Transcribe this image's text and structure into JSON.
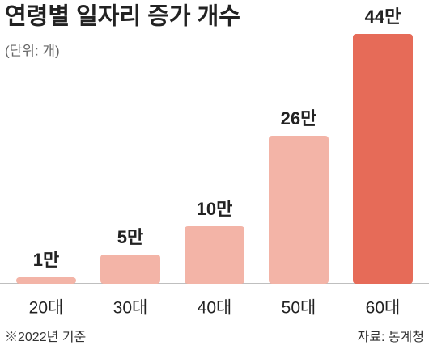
{
  "chart_data": {
    "type": "bar",
    "title": "연령별 일자리 증가 개수",
    "subtitle": "(단위: 개)",
    "categories": [
      "20대",
      "30대",
      "40대",
      "50대",
      "60대"
    ],
    "values": [
      1,
      5,
      10,
      26,
      44
    ],
    "value_labels": [
      "1만",
      "5만",
      "10만",
      "26만",
      "44만"
    ],
    "colors": [
      "#f3b4a7",
      "#f3b4a7",
      "#f3b4a7",
      "#f3b4a7",
      "#e66b58"
    ],
    "note": "※2022년 기준",
    "source": "자료: 통계청"
  }
}
